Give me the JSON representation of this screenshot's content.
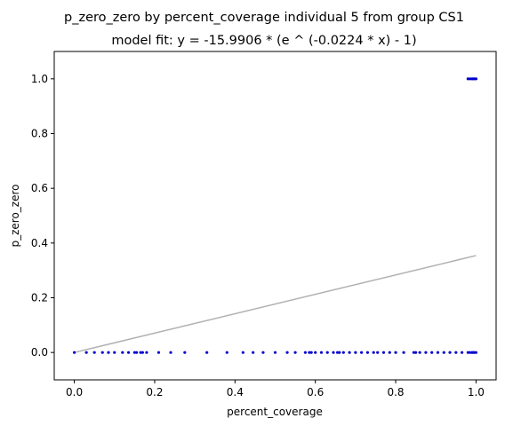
{
  "chart_data": {
    "type": "scatter",
    "title": "p_zero_zero by percent_coverage individual 5 from group CS1",
    "subtitle": "model fit: y = -15.9906 * (e ^ (-0.0224 * x) - 1)",
    "xlabel": "percent_coverage",
    "ylabel": "p_zero_zero",
    "xlim": [
      -0.05,
      1.05
    ],
    "ylim": [
      -0.1,
      1.1
    ],
    "xticks": [
      0.0,
      0.2,
      0.4,
      0.6,
      0.8,
      1.0
    ],
    "xtick_labels": [
      "0.0",
      "0.2",
      "0.4",
      "0.6",
      "0.8",
      "1.0"
    ],
    "yticks": [
      0.0,
      0.2,
      0.4,
      0.6,
      0.8,
      1.0
    ],
    "ytick_labels": [
      "0.0",
      "0.2",
      "0.4",
      "0.6",
      "0.8",
      "1.0"
    ],
    "grid": false,
    "colors": {
      "points": "#0000cc",
      "fit_line": "#b0b0b0"
    },
    "fit": {
      "a": -15.9906,
      "b": -0.0224,
      "x_range": [
        0.0,
        1.0
      ]
    },
    "series": [
      {
        "values_x": [
          0.0,
          0.03,
          0.05,
          0.07,
          0.085,
          0.1,
          0.12,
          0.135,
          0.15,
          0.155,
          0.165,
          0.17,
          0.18,
          0.21,
          0.24,
          0.275,
          0.33,
          0.38,
          0.42,
          0.445,
          0.47,
          0.5,
          0.53,
          0.55,
          0.575,
          0.585,
          0.59,
          0.6,
          0.615,
          0.63,
          0.645,
          0.655,
          0.66,
          0.67,
          0.685,
          0.7,
          0.715,
          0.73,
          0.745,
          0.755,
          0.77,
          0.785,
          0.8,
          0.82,
          0.845,
          0.85,
          0.86,
          0.875,
          0.89,
          0.905,
          0.92,
          0.935,
          0.95,
          0.965,
          0.98,
          0.985,
          0.99,
          0.993,
          0.996,
          1.0,
          0.98,
          0.985,
          0.99,
          0.993,
          0.996,
          1.0
        ],
        "values_y": [
          0.0,
          0.0,
          0.0,
          0.0,
          0.0,
          0.0,
          0.0,
          0.0,
          0.0,
          0.0,
          0.0,
          0.0,
          0.0,
          0.0,
          0.0,
          0.0,
          0.0,
          0.0,
          0.0,
          0.0,
          0.0,
          0.0,
          0.0,
          0.0,
          0.0,
          0.0,
          0.0,
          0.0,
          0.0,
          0.0,
          0.0,
          0.0,
          0.0,
          0.0,
          0.0,
          0.0,
          0.0,
          0.0,
          0.0,
          0.0,
          0.0,
          0.0,
          0.0,
          0.0,
          0.0,
          0.0,
          0.0,
          0.0,
          0.0,
          0.0,
          0.0,
          0.0,
          0.0,
          0.0,
          0.0,
          0.0,
          0.0,
          0.0,
          0.0,
          0.0,
          1.0,
          1.0,
          1.0,
          1.0,
          1.0,
          1.0
        ]
      }
    ]
  }
}
